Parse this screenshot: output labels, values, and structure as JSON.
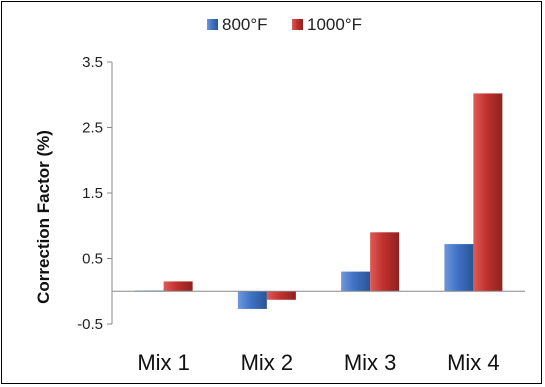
{
  "chart_data": {
    "type": "bar",
    "categories": [
      "Mix 1",
      "Mix 2",
      "Mix 3",
      "Mix 4"
    ],
    "series": [
      {
        "name": "800°F",
        "color": "#3f72c4",
        "values": [
          0.01,
          -0.27,
          0.3,
          0.72
        ]
      },
      {
        "name": "1000°F",
        "color": "#c0312e",
        "values": [
          0.15,
          -0.13,
          0.9,
          3.02
        ]
      }
    ],
    "ylabel": "Correction Factor (%)",
    "xlabel": "",
    "title": "",
    "ylim": [
      -0.5,
      3.5
    ],
    "yticks": [
      "-0.5",
      "0.5",
      "1.5",
      "2.5",
      "3.5"
    ],
    "grid": false,
    "legend_position": "top"
  }
}
